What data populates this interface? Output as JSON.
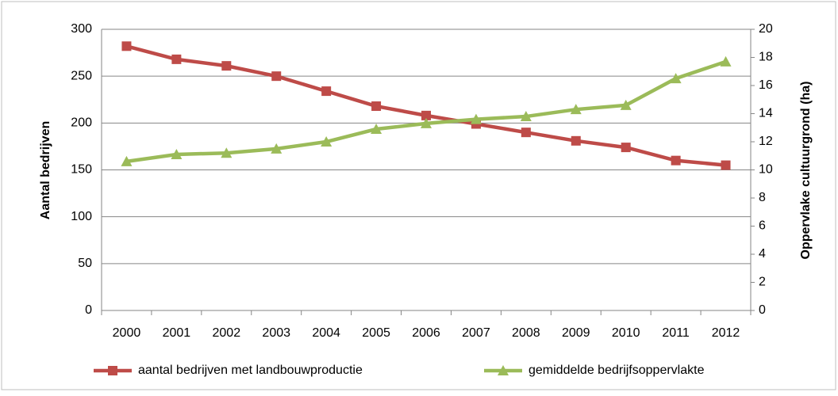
{
  "chart_data": {
    "type": "line",
    "categories": [
      "2000",
      "2001",
      "2002",
      "2003",
      "2004",
      "2005",
      "2006",
      "2007",
      "2008",
      "2009",
      "2010",
      "2011",
      "2012"
    ],
    "series": [
      {
        "name": "aantal bedrijven met landbouwproductie",
        "color": "#be4b48",
        "marker": "square",
        "values": [
          282,
          268,
          261,
          250,
          234,
          218,
          208,
          199,
          190,
          181,
          174,
          160,
          155
        ]
      },
      {
        "name": "gemiddelde bedrijfsoppervlakte",
        "color": "#9bbb59",
        "marker": "triangle",
        "axis": "y2",
        "values": [
          10.6,
          11.1,
          11.2,
          11.5,
          12.0,
          12.9,
          13.3,
          13.6,
          13.8,
          14.3,
          14.6,
          16.5,
          17.7
        ]
      }
    ],
    "ylabel": "Aantal bedrijven",
    "y2label": "Oppervlake cultuurgrond (ha)",
    "ylim": [
      0,
      300
    ],
    "yticks": [
      0,
      50,
      100,
      150,
      200,
      250,
      300
    ],
    "y2lim": [
      0,
      20
    ],
    "y2ticks": [
      0,
      2,
      4,
      6,
      8,
      10,
      12,
      14,
      16,
      18,
      20
    ],
    "grid": true,
    "legend": "bottom"
  }
}
